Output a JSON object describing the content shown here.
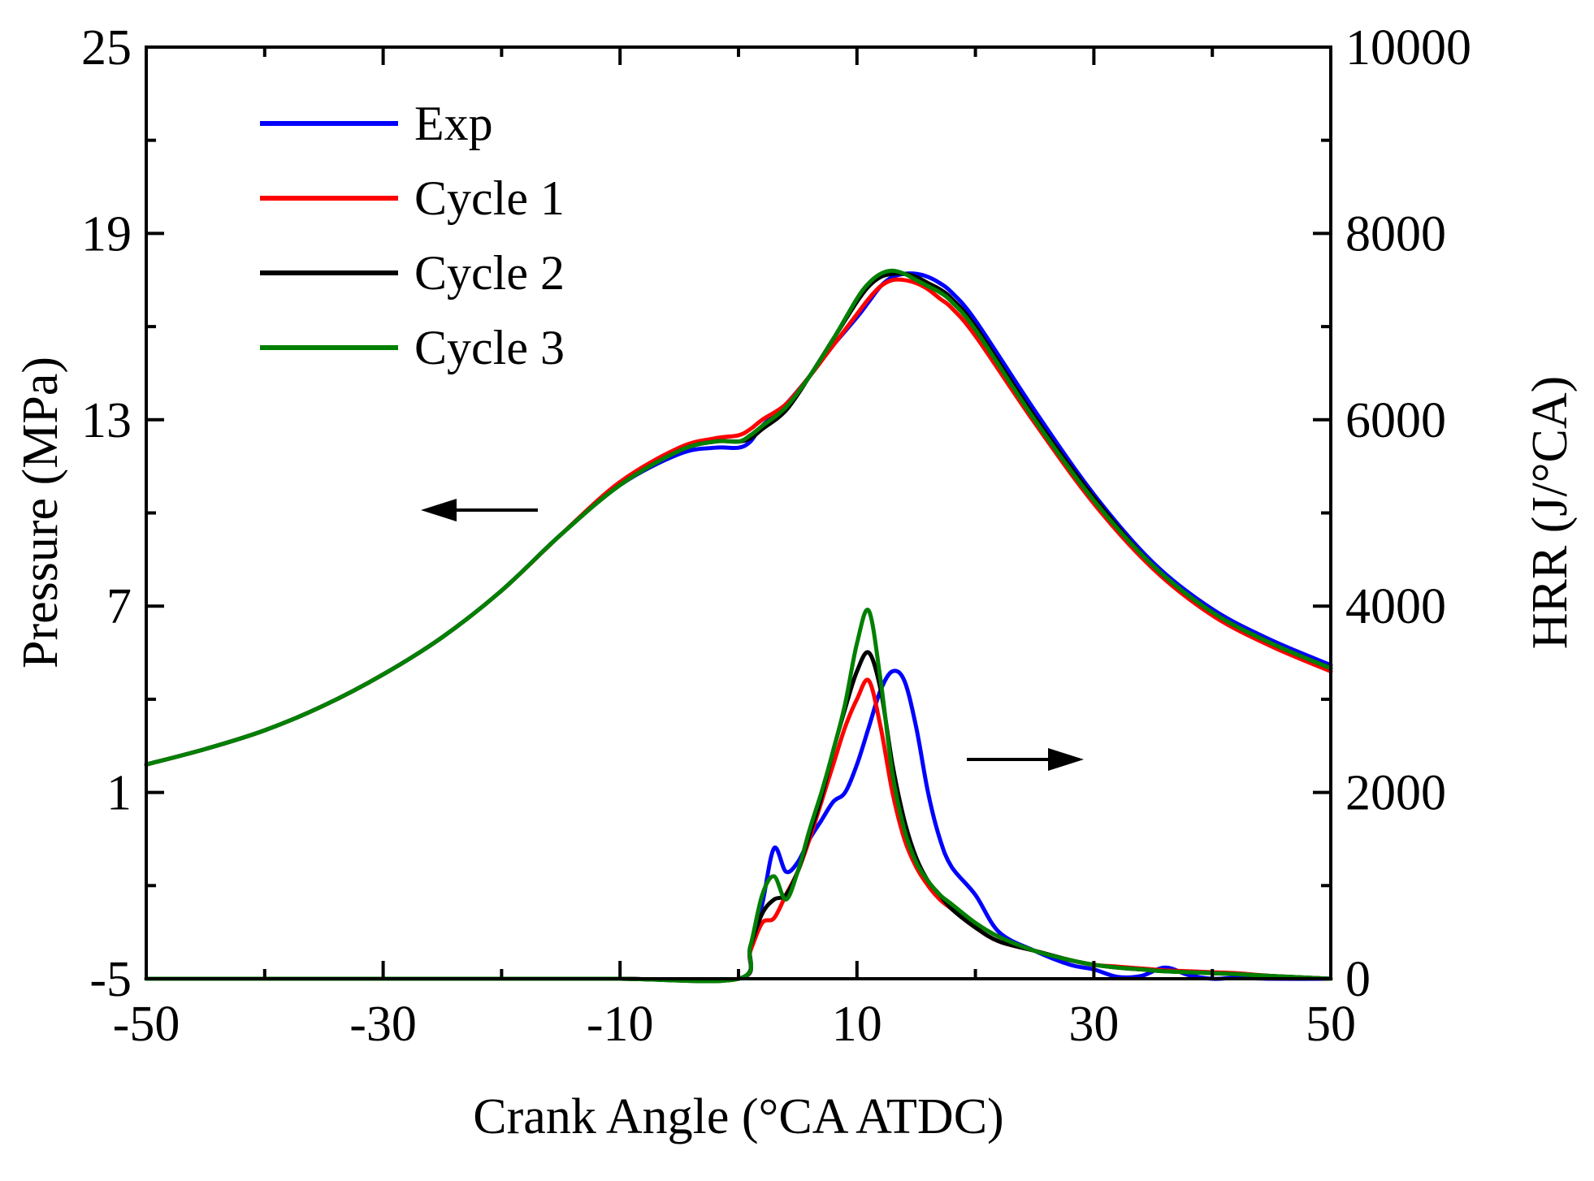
{
  "chart_data": {
    "type": "line",
    "xlabel": "Crank Angle (°CA ATDC)",
    "ylabel_left": "Pressure (MPa)",
    "ylabel_right": "HRR (J/°CA)",
    "xlim": [
      -50,
      50
    ],
    "ylim_left": [
      -5,
      25
    ],
    "ylim_right": [
      0,
      10000
    ],
    "x_ticks": [
      "-50",
      "-30",
      "-10",
      "10",
      "30",
      "50"
    ],
    "x_tick_values": [
      -50,
      -30,
      -10,
      10,
      30,
      50
    ],
    "y_left_ticks": [
      "-5",
      "1",
      "7",
      "13",
      "19",
      "25"
    ],
    "y_left_tick_values": [
      -5,
      1,
      7,
      13,
      19,
      25
    ],
    "y_right_ticks": [
      "0",
      "2000",
      "4000",
      "6000",
      "8000",
      "10000"
    ],
    "y_right_tick_values": [
      0,
      2000,
      4000,
      6000,
      8000,
      10000
    ],
    "grid": false,
    "legend_position": "top-left",
    "annotations": [
      {
        "type": "arrow",
        "direction": "left",
        "refers_to": "Pressure (left axis)"
      },
      {
        "type": "arrow",
        "direction": "right",
        "refers_to": "HRR (right axis)"
      }
    ],
    "series": [
      {
        "name": "Exp",
        "color": "#0000ff",
        "axis": "left",
        "quantity": "pressure",
        "x": [
          -50,
          -45,
          -40,
          -35,
          -30,
          -25,
          -20,
          -15,
          -10,
          -5,
          -2,
          0,
          1,
          2,
          4,
          6,
          8,
          10,
          11,
          12,
          13,
          14,
          15,
          16,
          17,
          18,
          20,
          25,
          30,
          35,
          40,
          45,
          50
        ],
        "y": [
          1.9,
          2.4,
          3.0,
          3.8,
          4.8,
          6.0,
          7.5,
          9.3,
          10.9,
          11.9,
          12.1,
          12.1,
          12.3,
          12.8,
          13.5,
          14.4,
          15.4,
          16.3,
          16.8,
          17.3,
          17.6,
          17.7,
          17.7,
          17.6,
          17.4,
          17.1,
          16.2,
          13.3,
          10.6,
          8.4,
          6.9,
          5.9,
          5.1
        ]
      },
      {
        "name": "Cycle 1",
        "color": "#ff0000",
        "axis": "left",
        "quantity": "pressure",
        "x": [
          -50,
          -45,
          -40,
          -35,
          -30,
          -25,
          -20,
          -15,
          -10,
          -5,
          -2,
          0,
          1,
          2,
          4,
          6,
          8,
          10,
          11,
          12,
          13,
          14,
          15,
          16,
          17,
          18,
          20,
          25,
          30,
          35,
          40,
          45,
          50
        ],
        "y": [
          1.9,
          2.4,
          3.0,
          3.8,
          4.8,
          6.0,
          7.5,
          9.3,
          11.0,
          12.1,
          12.4,
          12.5,
          12.7,
          13.0,
          13.5,
          14.4,
          15.4,
          16.4,
          16.9,
          17.3,
          17.5,
          17.5,
          17.4,
          17.2,
          16.9,
          16.6,
          15.7,
          12.9,
          10.3,
          8.2,
          6.7,
          5.7,
          4.9
        ]
      },
      {
        "name": "Cycle 2",
        "color": "#000000",
        "axis": "left",
        "quantity": "pressure",
        "x": [
          -50,
          -45,
          -40,
          -35,
          -30,
          -25,
          -20,
          -15,
          -10,
          -5,
          -2,
          0,
          1,
          2,
          4,
          6,
          8,
          10,
          11,
          12,
          13,
          14,
          15,
          16,
          17,
          18,
          20,
          25,
          30,
          35,
          40,
          45,
          50
        ],
        "y": [
          1.9,
          2.4,
          3.0,
          3.8,
          4.8,
          6.0,
          7.5,
          9.3,
          10.9,
          12.0,
          12.3,
          12.3,
          12.4,
          12.7,
          13.3,
          14.4,
          15.6,
          16.8,
          17.3,
          17.6,
          17.7,
          17.7,
          17.6,
          17.4,
          17.2,
          16.9,
          16.0,
          13.1,
          10.5,
          8.3,
          6.8,
          5.8,
          5.0
        ]
      },
      {
        "name": "Cycle 3",
        "color": "#008000",
        "axis": "left",
        "quantity": "pressure",
        "x": [
          -50,
          -45,
          -40,
          -35,
          -30,
          -25,
          -20,
          -15,
          -10,
          -5,
          -2,
          0,
          1,
          2,
          4,
          6,
          8,
          10,
          11,
          12,
          13,
          14,
          15,
          16,
          17,
          18,
          20,
          25,
          30,
          35,
          40,
          45,
          50
        ],
        "y": [
          1.9,
          2.4,
          3.0,
          3.8,
          4.8,
          6.0,
          7.5,
          9.3,
          10.9,
          12.0,
          12.3,
          12.3,
          12.5,
          12.8,
          13.4,
          14.4,
          15.6,
          16.9,
          17.4,
          17.7,
          17.8,
          17.7,
          17.5,
          17.3,
          17.1,
          16.8,
          15.9,
          13.0,
          10.4,
          8.3,
          6.8,
          5.8,
          5.0
        ]
      },
      {
        "name": "Exp",
        "color": "#0000ff",
        "axis": "right",
        "quantity": "hrr",
        "x": [
          -50,
          -40,
          -30,
          -20,
          -10,
          0,
          1,
          2,
          3,
          4,
          5,
          6,
          7,
          8,
          9,
          10,
          11,
          12,
          13,
          14,
          15,
          16,
          17,
          18,
          20,
          22,
          25,
          28,
          30,
          32,
          34,
          36,
          38,
          40,
          42,
          45,
          50
        ],
        "y": [
          0,
          0,
          0,
          0,
          0,
          0,
          300,
          800,
          1400,
          1150,
          1250,
          1500,
          1700,
          1900,
          2000,
          2300,
          2700,
          3100,
          3300,
          3200,
          2700,
          2000,
          1500,
          1200,
          900,
          500,
          300,
          150,
          100,
          20,
          30,
          120,
          40,
          0,
          10,
          0,
          0
        ]
      },
      {
        "name": "Cycle 1",
        "color": "#ff0000",
        "axis": "right",
        "quantity": "hrr",
        "x": [
          -50,
          -40,
          -30,
          -20,
          -10,
          0,
          1,
          2,
          3,
          4,
          5,
          6,
          7,
          8,
          9,
          10,
          11,
          12,
          13,
          14,
          15,
          16,
          17,
          18,
          20,
          22,
          25,
          28,
          30,
          32,
          34,
          36,
          38,
          40,
          42,
          45,
          50
        ],
        "y": [
          0,
          0,
          0,
          0,
          0,
          0,
          300,
          600,
          650,
          900,
          1150,
          1500,
          1900,
          2300,
          2700,
          3000,
          3200,
          2700,
          2000,
          1500,
          1200,
          1000,
          850,
          750,
          550,
          400,
          300,
          200,
          150,
          130,
          110,
          90,
          80,
          70,
          60,
          30,
          0
        ]
      },
      {
        "name": "Cycle 2",
        "color": "#000000",
        "axis": "right",
        "quantity": "hrr",
        "x": [
          -50,
          -40,
          -30,
          -20,
          -10,
          0,
          1,
          2,
          3,
          4,
          5,
          6,
          7,
          8,
          9,
          10,
          11,
          12,
          13,
          14,
          15,
          16,
          17,
          18,
          20,
          22,
          25,
          28,
          30,
          32,
          34,
          36,
          38,
          40,
          42,
          45,
          50
        ],
        "y": [
          0,
          0,
          0,
          0,
          0,
          0,
          350,
          700,
          850,
          900,
          1150,
          1550,
          1950,
          2450,
          2900,
          3300,
          3500,
          3100,
          2300,
          1700,
          1300,
          1050,
          900,
          750,
          550,
          400,
          300,
          200,
          150,
          120,
          100,
          80,
          70,
          60,
          50,
          30,
          0
        ]
      },
      {
        "name": "Cycle 3",
        "color": "#008000",
        "axis": "right",
        "quantity": "hrr",
        "x": [
          -50,
          -40,
          -30,
          -20,
          -10,
          0,
          1,
          2,
          3,
          4,
          5,
          6,
          7,
          8,
          9,
          10,
          11,
          12,
          13,
          14,
          15,
          16,
          17,
          18,
          20,
          22,
          25,
          28,
          30,
          32,
          34,
          36,
          38,
          40,
          42,
          45,
          50
        ],
        "y": [
          0,
          0,
          0,
          0,
          0,
          0,
          350,
          900,
          1100,
          850,
          1150,
          1600,
          2000,
          2450,
          2950,
          3600,
          3950,
          3200,
          2200,
          1600,
          1250,
          1050,
          900,
          800,
          600,
          450,
          300,
          200,
          150,
          120,
          100,
          80,
          70,
          60,
          50,
          30,
          0
        ]
      }
    ]
  }
}
